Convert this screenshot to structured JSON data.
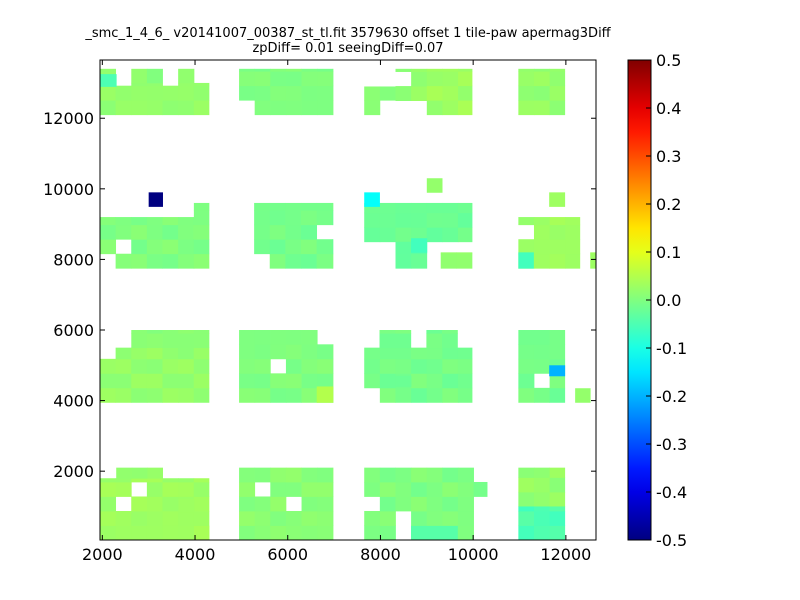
{
  "chart_data": {
    "type": "heatmap",
    "title_line1": "_smc_1_4_6_ v20141007_00387_st_tl.fit 3579630 offset 1 tile-paw apermag3Diff",
    "title_line2": "zpDiff= 0.01 seeingDiff=0.07",
    "xlim": [
      1950,
      12650
    ],
    "ylim": [
      50,
      13650
    ],
    "xticks": [
      2000,
      4000,
      6000,
      8000,
      10000,
      12000
    ],
    "yticks": [
      2000,
      4000,
      6000,
      8000,
      10000,
      12000
    ],
    "colorbar": {
      "colormap": "jet",
      "vmin": -0.5,
      "vmax": 0.5,
      "ticks": [
        "-0.5",
        "-0.4",
        "-0.3",
        "-0.2",
        "-0.1",
        "0.0",
        "0.1",
        "0.2",
        "0.3",
        "0.4",
        "0.5"
      ]
    },
    "grid": false,
    "cell_size": [
      337,
      411
    ],
    "regions": [
      {
        "x": [
          1950,
          2625
        ],
        "y": [
          12100,
          13400
        ],
        "value": 0.02
      },
      {
        "x": [
          2625,
          4300
        ],
        "y": [
          12100,
          13000
        ],
        "value": 0.02
      },
      {
        "x": [
          2625,
          3975
        ],
        "y": [
          13000,
          13400
        ],
        "value": 0.01
      },
      {
        "x": [
          4950,
          6975
        ],
        "y": [
          12100,
          13400
        ],
        "value": 0.0
      },
      {
        "x": [
          7650,
          8325
        ],
        "y": [
          12100,
          12900
        ],
        "value": 0.01
      },
      {
        "x": [
          8325,
          9000
        ],
        "y": [
          12500,
          13400
        ],
        "value": 0.02
      },
      {
        "x": [
          9000,
          9975
        ],
        "y": [
          12100,
          13400
        ],
        "value": 0.03
      },
      {
        "x": [
          10975,
          11975
        ],
        "y": [
          12100,
          13400
        ],
        "value": 0.02
      },
      {
        "x": [
          1950,
          3975
        ],
        "y": [
          7750,
          9200
        ],
        "value": 0.0
      },
      {
        "x": [
          3975,
          4300
        ],
        "y": [
          7750,
          9600
        ],
        "value": 0.0
      },
      {
        "x": [
          5275,
          6975
        ],
        "y": [
          7750,
          9600
        ],
        "value": -0.01
      },
      {
        "x": [
          7650,
          9975
        ],
        "y": [
          8500,
          9600
        ],
        "value": -0.02
      },
      {
        "x": [
          8325,
          9000
        ],
        "y": [
          7750,
          8500
        ],
        "value": -0.03
      },
      {
        "x": [
          9300,
          9975
        ],
        "y": [
          7750,
          8200
        ],
        "value": 0.02
      },
      {
        "x": [
          10975,
          12300
        ],
        "y": [
          7750,
          9200
        ],
        "value": 0.03
      },
      {
        "x": [
          12525,
          12650
        ],
        "y": [
          7750,
          8200
        ],
        "value": 0.03
      },
      {
        "x": [
          1950,
          4300
        ],
        "y": [
          3950,
          5500
        ],
        "value": 0.02
      },
      {
        "x": [
          2625,
          4300
        ],
        "y": [
          5500,
          6000
        ],
        "value": 0.01
      },
      {
        "x": [
          4950,
          6975
        ],
        "y": [
          3950,
          6000
        ],
        "value": 0.0
      },
      {
        "x": [
          7650,
          9975
        ],
        "y": [
          3950,
          5500
        ],
        "value": -0.01
      },
      {
        "x": [
          7980,
          9660
        ],
        "y": [
          5500,
          6000
        ],
        "value": -0.01
      },
      {
        "x": [
          10975,
          11975
        ],
        "y": [
          3950,
          6000
        ],
        "value": -0.01
      },
      {
        "x": [
          12200,
          12525
        ],
        "y": [
          3950,
          4350
        ],
        "value": 0.01
      },
      {
        "x": [
          1950,
          4300
        ],
        "y": [
          50,
          1800
        ],
        "value": 0.03
      },
      {
        "x": [
          2300,
          3300
        ],
        "y": [
          1800,
          2100
        ],
        "value": 0.02
      },
      {
        "x": [
          4950,
          6975
        ],
        "y": [
          50,
          2100
        ],
        "value": 0.01
      },
      {
        "x": [
          7650,
          10300
        ],
        "y": [
          50,
          2100
        ],
        "value": 0.0
      },
      {
        "x": [
          10975,
          11975
        ],
        "y": [
          1000,
          2100
        ],
        "value": 0.02
      },
      {
        "x": [
          10975,
          11975
        ],
        "y": [
          50,
          1000
        ],
        "value": -0.05
      }
    ],
    "holes": [
      {
        "x": [
          2300,
          2625
        ],
        "y": [
          12900,
          13400
        ]
      },
      {
        "x": [
          3300,
          3650
        ],
        "y": [
          12900,
          13400
        ]
      },
      {
        "x": [
          4950,
          5300
        ],
        "y": [
          12100,
          12500
        ]
      },
      {
        "x": [
          7980,
          8325
        ],
        "y": [
          12100,
          12500
        ]
      },
      {
        "x": [
          8325,
          8660
        ],
        "y": [
          12900,
          13250
        ]
      },
      {
        "x": [
          1950,
          2300
        ],
        "y": [
          7750,
          8200
        ]
      },
      {
        "x": [
          2300,
          2625
        ],
        "y": [
          8200,
          8600
        ]
      },
      {
        "x": [
          5275,
          5625
        ],
        "y": [
          7750,
          8200
        ]
      },
      {
        "x": [
          6625,
          6975
        ],
        "y": [
          8600,
          9000
        ]
      },
      {
        "x": [
          7980,
          8325
        ],
        "y": [
          8200,
          8500
        ]
      },
      {
        "x": [
          10975,
          11300
        ],
        "y": [
          8600,
          9000
        ]
      },
      {
        "x": [
          1950,
          2300
        ],
        "y": [
          5000,
          5500
        ]
      },
      {
        "x": [
          5600,
          5950
        ],
        "y": [
          4700,
          5000
        ]
      },
      {
        "x": [
          6625,
          6975
        ],
        "y": [
          5600,
          6000
        ]
      },
      {
        "x": [
          7650,
          7980
        ],
        "y": [
          3950,
          4400
        ]
      },
      {
        "x": [
          8660,
          9000
        ],
        "y": [
          5500,
          6000
        ]
      },
      {
        "x": [
          11300,
          11640
        ],
        "y": [
          4350,
          4700
        ]
      },
      {
        "x": [
          2300,
          2625
        ],
        "y": [
          850,
          1200
        ]
      },
      {
        "x": [
          2625,
          2950
        ],
        "y": [
          1200,
          1500
        ]
      },
      {
        "x": [
          5275,
          5625
        ],
        "y": [
          1200,
          1800
        ]
      },
      {
        "x": [
          5950,
          6300
        ],
        "y": [
          850,
          1200
        ]
      },
      {
        "x": [
          6300,
          6625
        ],
        "y": [
          1500,
          1800
        ]
      },
      {
        "x": [
          7650,
          7980
        ],
        "y": [
          850,
          1200
        ]
      },
      {
        "x": [
          8325,
          8660
        ],
        "y": [
          50,
          850
        ]
      },
      {
        "x": [
          9980,
          10300
        ],
        "y": [
          50,
          1200
        ]
      },
      {
        "x": [
          9980,
          10300
        ],
        "y": [
          1500,
          2100
        ]
      }
    ],
    "special_cells": [
      {
        "x": [
          1950,
          2300
        ],
        "y": [
          12900,
          13250
        ],
        "value": -0.05
      },
      {
        "x": [
          3000,
          3300
        ],
        "y": [
          9500,
          9900
        ],
        "value": -0.5
      },
      {
        "x": [
          7650,
          7980
        ],
        "y": [
          9500,
          9900
        ],
        "value": -0.12
      },
      {
        "x": [
          8660,
          9000
        ],
        "y": [
          8200,
          8600
        ],
        "value": -0.06
      },
      {
        "x": [
          9000,
          9330
        ],
        "y": [
          9900,
          10300
        ],
        "value": 0.02
      },
      {
        "x": [
          10975,
          11300
        ],
        "y": [
          7750,
          8200
        ],
        "value": -0.06
      },
      {
        "x": [
          11640,
          11975
        ],
        "y": [
          4700,
          5000
        ],
        "value": -0.2
      },
      {
        "x": [
          11640,
          11975
        ],
        "y": [
          9500,
          9900
        ],
        "value": 0.03
      },
      {
        "x": [
          6625,
          6975
        ],
        "y": [
          3950,
          4400
        ],
        "value": 0.05
      },
      {
        "x": [
          8325,
          8660
        ],
        "y": [
          4400,
          4700
        ],
        "value": -0.02
      },
      {
        "x": [
          8660,
          9660
        ],
        "y": [
          50,
          450
        ],
        "value": -0.04
      },
      {
        "x": [
          3975,
          4300
        ],
        "y": [
          50,
          450
        ],
        "value": 0.04
      },
      {
        "x": [
          3650,
          3975
        ],
        "y": [
          850,
          1200
        ],
        "value": 0.03
      }
    ]
  }
}
